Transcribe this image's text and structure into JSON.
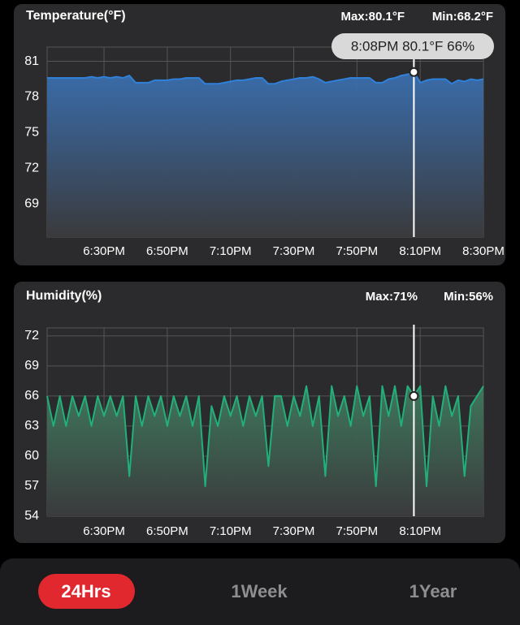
{
  "chart_data": [
    {
      "type": "line",
      "title": "Temperature(°F)",
      "max_label": "Max:80.1°F",
      "min_label": "Min:68.2°F",
      "annotation": "8:08PM 80.1°F 66%",
      "cursor_x": 1208,
      "x": [
        1092,
        1094,
        1096,
        1098,
        1100,
        1102,
        1104,
        1106,
        1108,
        1110,
        1112,
        1114,
        1116,
        1118,
        1120,
        1122,
        1124,
        1126,
        1128,
        1130,
        1132,
        1134,
        1136,
        1138,
        1140,
        1142,
        1144,
        1146,
        1148,
        1150,
        1152,
        1154,
        1156,
        1158,
        1160,
        1162,
        1164,
        1166,
        1168,
        1170,
        1172,
        1174,
        1176,
        1178,
        1180,
        1182,
        1184,
        1186,
        1188,
        1190,
        1192,
        1194,
        1196,
        1198,
        1200,
        1202,
        1204,
        1206,
        1208,
        1210,
        1212,
        1214,
        1216,
        1218,
        1220,
        1222,
        1224,
        1226,
        1228,
        1230
      ],
      "series": [
        {
          "name": "Temperature",
          "color": "#2f80d8",
          "fill": "#3a6fb0",
          "values": [
            79.6,
            79.6,
            79.6,
            79.6,
            79.6,
            79.6,
            79.6,
            79.7,
            79.6,
            79.7,
            79.6,
            79.7,
            79.6,
            79.8,
            79.2,
            79.2,
            79.2,
            79.4,
            79.4,
            79.4,
            79.5,
            79.5,
            79.6,
            79.6,
            79.6,
            79.1,
            79.1,
            79.1,
            79.2,
            79.3,
            79.4,
            79.4,
            79.5,
            79.6,
            79.6,
            79.1,
            79.1,
            79.3,
            79.4,
            79.5,
            79.6,
            79.6,
            79.7,
            79.5,
            79.2,
            79.3,
            79.4,
            79.5,
            79.6,
            79.6,
            79.6,
            79.6,
            79.2,
            79.2,
            79.5,
            79.6,
            79.8,
            79.9,
            80.1,
            79.2,
            79.4,
            79.5,
            79.5,
            79.5,
            79.1,
            79.4,
            79.3,
            79.5,
            79.4,
            79.5
          ]
        }
      ],
      "xlim": [
        1092,
        1230
      ],
      "xticks": [
        {
          "value": 1110,
          "label": "6:30PM"
        },
        {
          "value": 1130,
          "label": "6:50PM"
        },
        {
          "value": 1150,
          "label": "7:10PM"
        },
        {
          "value": 1170,
          "label": "7:30PM"
        },
        {
          "value": 1190,
          "label": "7:50PM"
        },
        {
          "value": 1210,
          "label": "8:10PM"
        },
        {
          "value": 1230,
          "label": "8:30PM"
        }
      ],
      "ylim": [
        66.2,
        82.2
      ],
      "yticks": [
        69,
        72,
        75,
        78,
        81
      ],
      "grid": true
    },
    {
      "type": "line",
      "title": "Humidity(%)",
      "max_label": "Max:71%",
      "min_label": "Min:56%",
      "cursor_x": 1208,
      "x": [
        1092,
        1094,
        1096,
        1098,
        1100,
        1102,
        1104,
        1106,
        1108,
        1110,
        1112,
        1114,
        1116,
        1118,
        1120,
        1122,
        1124,
        1126,
        1128,
        1130,
        1132,
        1134,
        1136,
        1138,
        1140,
        1142,
        1144,
        1146,
        1148,
        1150,
        1152,
        1154,
        1156,
        1158,
        1160,
        1162,
        1164,
        1166,
        1168,
        1170,
        1172,
        1174,
        1176,
        1178,
        1180,
        1182,
        1184,
        1186,
        1188,
        1190,
        1192,
        1194,
        1196,
        1198,
        1200,
        1202,
        1204,
        1206,
        1208,
        1210,
        1212,
        1214,
        1216,
        1218,
        1220,
        1222,
        1224,
        1226,
        1228,
        1230
      ],
      "series": [
        {
          "name": "Humidity",
          "color": "#22b07a",
          "fill": "#3f7a5e",
          "values": [
            66,
            63,
            66,
            63,
            66,
            64,
            66,
            63,
            66,
            64,
            66,
            64,
            66,
            58,
            66,
            63,
            66,
            64,
            66,
            63,
            66,
            64,
            66,
            63,
            66,
            57,
            65,
            63,
            66,
            64,
            66,
            63,
            66,
            64,
            66,
            59,
            66,
            66,
            63,
            66,
            64,
            67,
            63,
            66,
            58,
            67,
            64,
            66,
            63,
            67,
            64,
            66,
            57,
            67,
            64,
            67,
            63,
            67,
            66,
            67,
            57,
            66,
            63,
            67,
            64,
            66,
            58,
            65,
            66,
            67
          ]
        }
      ],
      "xlim": [
        1092,
        1230
      ],
      "xticks": [
        {
          "value": 1110,
          "label": "6:30PM"
        },
        {
          "value": 1130,
          "label": "6:50PM"
        },
        {
          "value": 1150,
          "label": "7:10PM"
        },
        {
          "value": 1170,
          "label": "7:30PM"
        },
        {
          "value": 1190,
          "label": "7:50PM"
        },
        {
          "value": 1210,
          "label": "8:10PM"
        }
      ],
      "ylim": [
        54,
        72.8
      ],
      "yticks": [
        54,
        57,
        60,
        63,
        66,
        69,
        72
      ],
      "grid": true
    }
  ],
  "tabs": {
    "items": [
      "24Hrs",
      "1Week",
      "1Year"
    ],
    "active": 0
  }
}
